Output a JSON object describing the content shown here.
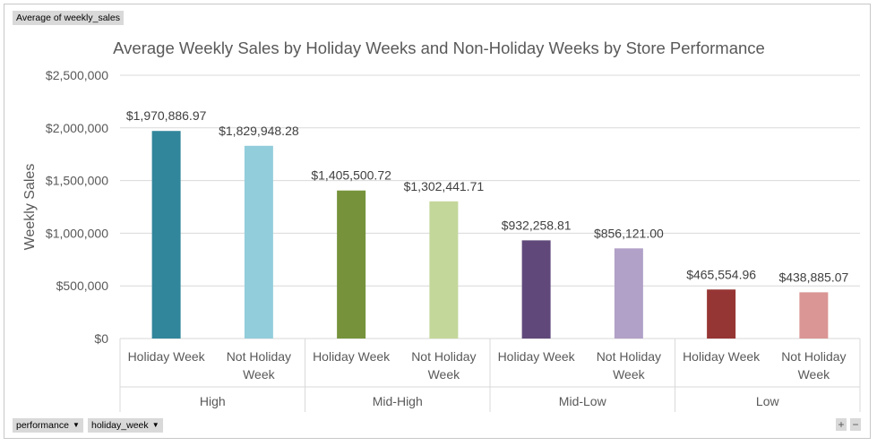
{
  "pivot": {
    "value_field": "Average of weekly_sales",
    "axis_fields": [
      "performance",
      "holiday_week"
    ],
    "dropdown_icon": "triangle-down-icon",
    "zoom_in": "+",
    "zoom_out": "−"
  },
  "chart_data": {
    "type": "bar",
    "title": "Average Weekly Sales by Holiday Weeks and Non-Holiday Weeks by Store Performance",
    "xlabel": "",
    "ylabel": "Weekly Sales",
    "ylim": [
      0,
      2500000
    ],
    "yticks": [
      0,
      500000,
      1000000,
      1500000,
      2000000,
      2500000
    ],
    "ytick_labels": [
      "$0",
      "$500,000",
      "$1,000,000",
      "$1,500,000",
      "$2,000,000",
      "$2,500,000"
    ],
    "grid": true,
    "legend": "none",
    "groups": [
      {
        "name": "High",
        "categories": [
          "Holiday Week",
          "Not Holiday Week"
        ],
        "values": [
          1970886.97,
          1829948.28
        ],
        "labels": [
          "$1,970,886.97",
          "$1,829,948.28"
        ],
        "colors": [
          "#31869B",
          "#92CDDC"
        ]
      },
      {
        "name": "Mid-High",
        "categories": [
          "Holiday Week",
          "Not Holiday Week"
        ],
        "values": [
          1405500.72,
          1302441.71
        ],
        "labels": [
          "$1,405,500.72",
          "$1,302,441.71"
        ],
        "colors": [
          "#76933C",
          "#C4D79B"
        ]
      },
      {
        "name": "Mid-Low",
        "categories": [
          "Holiday Week",
          "Not Holiday Week"
        ],
        "values": [
          932258.81,
          856121.0
        ],
        "labels": [
          "$932,258.81",
          "$856,121.00"
        ],
        "colors": [
          "#60497A",
          "#B1A0C7"
        ]
      },
      {
        "name": "Low",
        "categories": [
          "Holiday Week",
          "Not Holiday Week"
        ],
        "values": [
          465554.96,
          438885.07
        ],
        "labels": [
          "$465,554.96",
          "$438,885.07"
        ],
        "colors": [
          "#963634",
          "#DA9694"
        ]
      }
    ]
  }
}
